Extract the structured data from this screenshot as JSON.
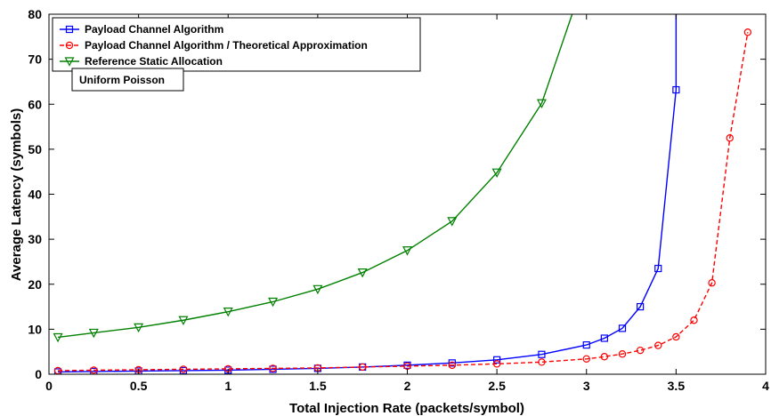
{
  "chart_data": {
    "type": "line",
    "xlabel": "Total Injection Rate (packets/symbol)",
    "ylabel": "Average Latency (symbols)",
    "xlim": [
      0,
      4
    ],
    "ylim": [
      0,
      80
    ],
    "xticks": [
      0,
      0.5,
      1,
      1.5,
      2,
      2.5,
      3,
      3.5,
      4
    ],
    "xtick_labels": [
      "0",
      "0.5",
      "1",
      "1.5",
      "2",
      "2.5",
      "3",
      "3.5",
      "4"
    ],
    "yticks": [
      0,
      10,
      20,
      30,
      40,
      50,
      60,
      70,
      80
    ],
    "ytick_labels": [
      "0",
      "10",
      "20",
      "30",
      "40",
      "50",
      "60",
      "70",
      "80"
    ],
    "grid": false,
    "legend_position": "top-left",
    "annotation": "Uniform Poisson",
    "series": [
      {
        "name": "Payload Channel Algorithm",
        "color": "#0000ff",
        "linestyle": "solid",
        "marker": "square",
        "x": [
          0.05,
          0.25,
          0.5,
          0.75,
          1.0,
          1.25,
          1.5,
          1.75,
          2.0,
          2.25,
          2.5,
          2.75,
          3.0,
          3.1,
          3.2,
          3.3,
          3.4,
          3.5,
          3.5
        ],
        "y": [
          0.5,
          0.6,
          0.7,
          0.8,
          0.9,
          1.1,
          1.3,
          1.6,
          2.0,
          2.5,
          3.2,
          4.4,
          6.5,
          8.0,
          10.2,
          15.0,
          23.5,
          63.2,
          80
        ]
      },
      {
        "name": "Payload Channel Algorithm / Theoretical Approximation",
        "color": "#ff0000",
        "linestyle": "dashed",
        "marker": "circle",
        "x": [
          0.05,
          0.25,
          0.5,
          0.75,
          1.0,
          1.25,
          1.5,
          1.75,
          2.0,
          2.25,
          2.5,
          2.75,
          3.0,
          3.1,
          3.2,
          3.3,
          3.4,
          3.5,
          3.6,
          3.7,
          3.8,
          3.9
        ],
        "y": [
          0.8,
          0.9,
          1.0,
          1.1,
          1.2,
          1.3,
          1.4,
          1.6,
          1.8,
          2.0,
          2.3,
          2.7,
          3.4,
          3.9,
          4.5,
          5.3,
          6.4,
          8.3,
          12.0,
          20.3,
          52.5,
          76.0
        ]
      },
      {
        "name": "Reference Static Allocation",
        "color": "#008000",
        "linestyle": "solid",
        "marker": "triangle-down",
        "x": [
          0.05,
          0.25,
          0.5,
          0.75,
          1.0,
          1.25,
          1.5,
          1.75,
          2.0,
          2.25,
          2.5,
          2.75,
          2.92
        ],
        "y": [
          8.2,
          9.2,
          10.4,
          12.0,
          13.9,
          16.1,
          18.9,
          22.6,
          27.5,
          34.0,
          44.8,
          60.2,
          80
        ],
        "marker_count": 12
      }
    ]
  }
}
